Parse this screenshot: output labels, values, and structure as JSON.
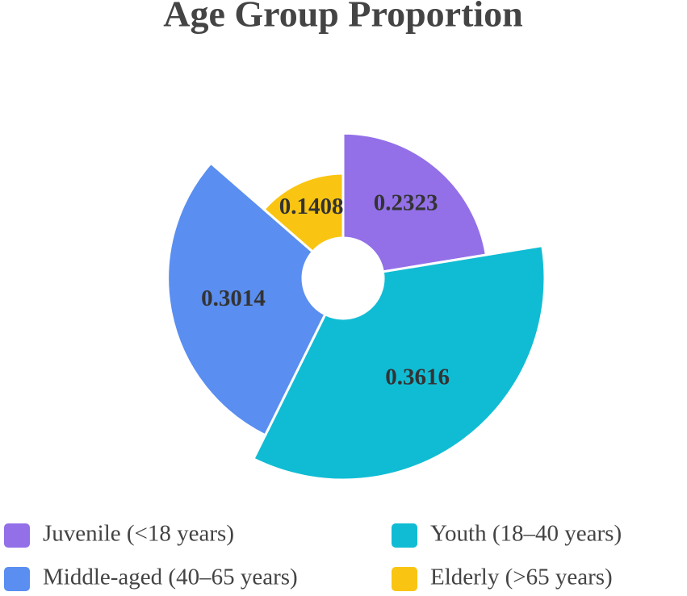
{
  "chart_data": {
    "type": "pie",
    "rose_type": "radius",
    "title": "Age Group Proportion",
    "categories": [
      "Juvenile (<18 years)",
      "Youth (18–40 years)",
      "Middle-aged (40–65 years)",
      "Elderly (>65 years)"
    ],
    "values": [
      0.2323,
      0.3616,
      0.3014,
      0.1408
    ],
    "colors": [
      "#9370e8",
      "#10bcd4",
      "#5a8ef0",
      "#f9c512"
    ],
    "legend": "bottom"
  }
}
